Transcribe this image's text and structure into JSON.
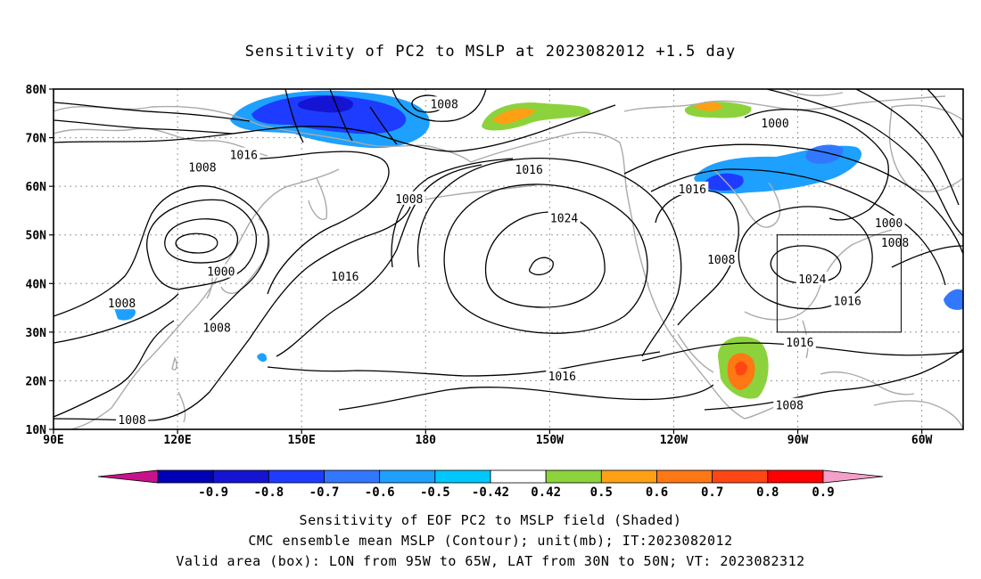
{
  "title": "Sensitivity of PC2 to MSLP at 2023082012 +1.5 day",
  "map": {
    "lon_range": [
      90,
      310
    ],
    "lat_range": [
      10,
      80
    ],
    "lat_ticks": [
      {
        "value": 80,
        "label": "80N"
      },
      {
        "value": 70,
        "label": "70N"
      },
      {
        "value": 60,
        "label": "60N"
      },
      {
        "value": 50,
        "label": "50N"
      },
      {
        "value": 40,
        "label": "40N"
      },
      {
        "value": 30,
        "label": "30N"
      },
      {
        "value": 20,
        "label": "20N"
      },
      {
        "value": 10,
        "label": "10N"
      }
    ],
    "lon_ticks": [
      {
        "value": 90,
        "label": "90E"
      },
      {
        "value": 120,
        "label": "120E"
      },
      {
        "value": 150,
        "label": "150E"
      },
      {
        "value": 180,
        "label": "180"
      },
      {
        "value": 210,
        "label": "150W"
      },
      {
        "value": 240,
        "label": "120W"
      },
      {
        "value": 270,
        "label": "90W"
      },
      {
        "value": 300,
        "label": "60W"
      }
    ],
    "grid": "dotted",
    "valid_box": {
      "lon": [
        265,
        295
      ],
      "lat": [
        30,
        50
      ]
    },
    "contour_labels": [
      {
        "text": "1008",
        "lon": 184.5,
        "lat": 77
      },
      {
        "text": "1016",
        "lon": 136,
        "lat": 66.5
      },
      {
        "text": "1008",
        "lon": 126,
        "lat": 64
      },
      {
        "text": "1016",
        "lon": 205,
        "lat": 63.5
      },
      {
        "text": "1008",
        "lon": 176,
        "lat": 57.5
      },
      {
        "text": "1024",
        "lon": 213.5,
        "lat": 53.5
      },
      {
        "text": "1016",
        "lon": 244.5,
        "lat": 59.5
      },
      {
        "text": "1000",
        "lon": 264.5,
        "lat": 73
      },
      {
        "text": "1000",
        "lon": 292,
        "lat": 52.5
      },
      {
        "text": "1008",
        "lon": 293.5,
        "lat": 48.5
      },
      {
        "text": "1000",
        "lon": 130.5,
        "lat": 42.5
      },
      {
        "text": "1016",
        "lon": 160.5,
        "lat": 41.5
      },
      {
        "text": "1008",
        "lon": 251.5,
        "lat": 45
      },
      {
        "text": "1024",
        "lon": 273.5,
        "lat": 41
      },
      {
        "text": "1016",
        "lon": 282,
        "lat": 36.5
      },
      {
        "text": "1008",
        "lon": 106.5,
        "lat": 36
      },
      {
        "text": "1008",
        "lon": 129.5,
        "lat": 31
      },
      {
        "text": "1016",
        "lon": 270.5,
        "lat": 28
      },
      {
        "text": "1016",
        "lon": 213,
        "lat": 21
      },
      {
        "text": "1008",
        "lon": 109,
        "lat": 12
      },
      {
        "text": "1008",
        "lon": 268,
        "lat": 15
      }
    ],
    "pressure_centers": [
      {
        "type": "low",
        "lon": 129,
        "lat": 48
      },
      {
        "type": "low",
        "lon": 185,
        "lat": 74
      },
      {
        "type": "high",
        "lon": 213,
        "lat": 43
      },
      {
        "type": "high",
        "lon": 273,
        "lat": 43
      }
    ]
  },
  "colorbar": {
    "colors": [
      "#c8128c",
      "#0000b4",
      "#1414d2",
      "#1e3cff",
      "#3278ff",
      "#1ea0ff",
      "#00c8ff",
      "#ffffff",
      "#8cd23c",
      "#ffa014",
      "#ff7814",
      "#ff4614",
      "#ff0000",
      "#f5a0c8"
    ],
    "labels": [
      "-0.9",
      "-0.8",
      "-0.7",
      "-0.6",
      "-0.5",
      "-0.42",
      "0.42",
      "0.5",
      "0.6",
      "0.7",
      "0.8",
      "0.9"
    ]
  },
  "captions": {
    "line1": "Sensitivity of EOF PC2 to MSLP field (Shaded)",
    "line2": "CMC ensemble mean MSLP (Contour); unit(mb); IT:2023082012",
    "line3": "Valid area (box): LON from 95W to 65W, LAT from 30N to 50N; VT: 2023082312"
  }
}
